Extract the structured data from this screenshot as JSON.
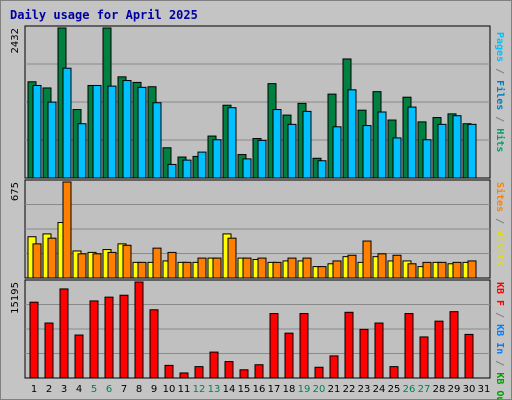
{
  "chart_data": {
    "type": "bar",
    "title": "Daily usage for April 2025",
    "categories": [
      "1",
      "2",
      "3",
      "4",
      "5",
      "6",
      "7",
      "8",
      "9",
      "10",
      "11",
      "12",
      "13",
      "14",
      "15",
      "16",
      "17",
      "18",
      "19",
      "20",
      "21",
      "22",
      "23",
      "24",
      "25",
      "26",
      "27",
      "28",
      "29",
      "30",
      "31"
    ],
    "weekend_days": [
      "5",
      "6",
      "12",
      "13",
      "19",
      "20",
      "26",
      "27"
    ],
    "axis_label_colors": {
      "weekday": "#000000",
      "weekend": "#00805c"
    },
    "panels": [
      {
        "name": "hits-files-pages",
        "ymax_label": "2432",
        "ymax": 2432,
        "series": [
          {
            "name": "Hits",
            "color": "#008040",
            "values": [
              1560,
              1460,
              2432,
              1110,
              1500,
              2432,
              1640,
              1550,
              1480,
              490,
              340,
              350,
              680,
              1180,
              380,
              640,
              1530,
              1020,
              1210,
              320,
              1360,
              1930,
              1100,
              1400,
              940,
              1310,
              910,
              980,
              1040,
              880,
              null
            ]
          },
          {
            "name": "Files",
            "color": "#00c0ff",
            "values": [
              1500,
              1230,
              1780,
              880,
              1500,
              1490,
              1580,
              1470,
              1220,
              220,
              290,
              420,
              620,
              1140,
              310,
              610,
              1110,
              870,
              1080,
              280,
              830,
              1430,
              850,
              1070,
              650,
              1150,
              620,
              870,
              1010,
              870,
              null
            ]
          },
          {
            "name": "Pages",
            "color": "#00c0ff",
            "values": [
              null,
              null,
              null,
              null,
              null,
              null,
              null,
              null,
              null,
              null,
              null,
              null,
              null,
              null,
              null,
              null,
              null,
              null,
              null,
              null,
              null,
              null,
              null,
              null,
              null,
              null,
              null,
              null,
              null,
              null,
              null
            ]
          },
          {
            "name": "Visits",
            "color": "#00c0ff",
            "values": [
              null,
              null,
              null,
              null,
              null,
              null,
              null,
              null,
              null,
              null,
              null,
              null,
              null,
              null,
              null,
              null,
              null,
              null,
              null,
              null,
              null,
              null,
              null,
              null,
              null,
              null,
              null,
              null,
              null,
              null,
              null
            ]
          }
        ],
        "axis_texts": [
          {
            "text": "Pages",
            "color": "#00c0ff"
          },
          {
            "text": " / ",
            "color": "#808080"
          },
          {
            "text": "Files",
            "color": "#0080c0"
          },
          {
            "text": " / ",
            "color": "#808080"
          },
          {
            "text": "Hits",
            "color": "#00a070"
          }
        ]
      },
      {
        "name": "visits-sites",
        "ymax_label": "675",
        "ymax": 675,
        "series": [
          {
            "name": "Visits",
            "color": "#ffff00",
            "values": [
              290,
              310,
              390,
              190,
              180,
              200,
              240,
              110,
              110,
              120,
              110,
              110,
              140,
              310,
              140,
              130,
              110,
              120,
              120,
              80,
              100,
              150,
              110,
              150,
              120,
              120,
              80,
              110,
              100,
              110,
              null
            ]
          },
          {
            "name": "Sites",
            "color": "#ff8000",
            "values": [
              240,
              280,
              675,
              170,
              170,
              180,
              230,
              110,
              210,
              180,
              110,
              140,
              140,
              280,
              140,
              140,
              110,
              140,
              140,
              80,
              120,
              160,
              260,
              170,
              160,
              100,
              110,
              110,
              110,
              120,
              null
            ]
          }
        ],
        "axis_texts": [
          {
            "text": "Sites",
            "color": "#ff8000"
          },
          {
            "text": " / ",
            "color": "#808080"
          },
          {
            "text": "Visits",
            "color": "#e0e000"
          }
        ]
      },
      {
        "name": "kbytes",
        "ymax_label": "15195",
        "ymax": 15195,
        "series": [
          {
            "name": "KB F",
            "color": "#ff0000",
            "values": [
              12000,
              8700,
              14100,
              6800,
              12200,
              12800,
              13100,
              15195,
              10800,
              2000,
              800,
              1800,
              4100,
              2600,
              1300,
              2100,
              10200,
              7100,
              10200,
              1700,
              3500,
              10400,
              7700,
              8700,
              1800,
              10200,
              6500,
              9000,
              10500,
              6900,
              null
            ]
          }
        ],
        "axis_texts": [
          {
            "text": "KB F",
            "color": "#ff0000"
          },
          {
            "text": " / ",
            "color": "#808080"
          },
          {
            "text": "KB In",
            "color": "#0080ff"
          },
          {
            "text": " / ",
            "color": "#808080"
          },
          {
            "text": "KB Out",
            "color": "#00a000"
          }
        ]
      }
    ]
  }
}
